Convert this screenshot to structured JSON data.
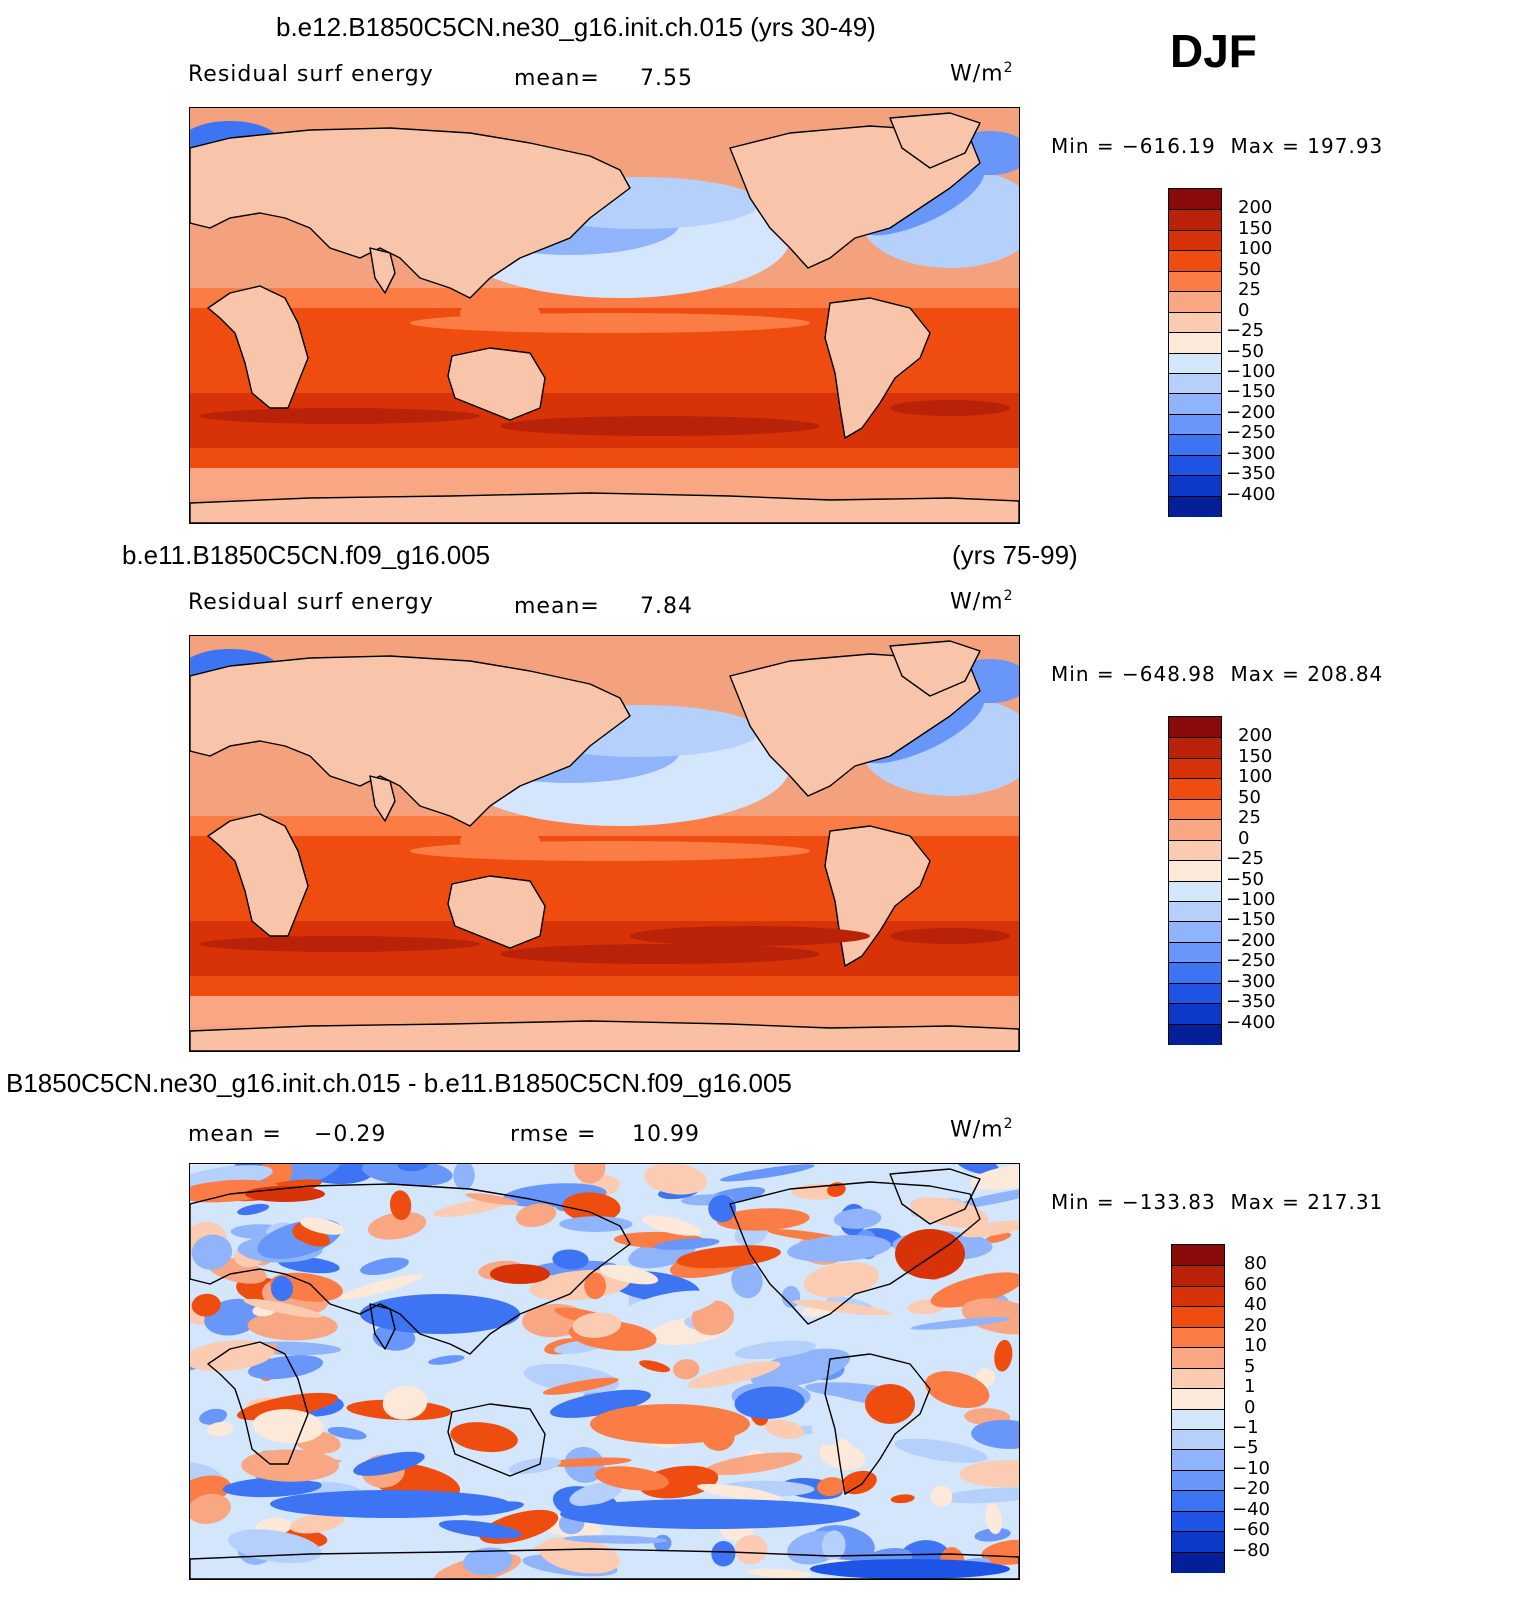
{
  "season": "DJF",
  "panels": [
    {
      "title_left": "b.e12.B1850C5CN.ne30_g16.init.ch.015 (yrs 30-49)",
      "title_right": "",
      "variable": "Residual surf energy",
      "stat1_label": "mean=",
      "stat1_value": "7.55",
      "stat2_label": "",
      "stat2_value": "",
      "units": "W/m",
      "units_exp": "2",
      "min_label": "Min",
      "min_value": "−616.19",
      "max_label": "Max",
      "max_value": "197.93",
      "colorbar": {
        "colors": [
          "#8a0a0a",
          "#b82209",
          "#d83208",
          "#ee4d0f",
          "#fb7d45",
          "#f9a783",
          "#fbcbb2",
          "#fde9d9",
          "#d4e6fb",
          "#b4d0fb",
          "#8fb4fb",
          "#6896f9",
          "#3d74f4",
          "#1f55e6",
          "#0c39c9",
          "#031f9a"
        ],
        "labels": [
          "200",
          "150",
          "100",
          "50",
          "25",
          "0",
          "−25",
          "−50",
          "−100",
          "−150",
          "−200",
          "−250",
          "−300",
          "−350",
          "−400"
        ]
      },
      "map_style": "absolute"
    },
    {
      "title_left": "b.e11.B1850C5CN.f09_g16.005",
      "title_right": "(yrs 75-99)",
      "variable": "Residual surf energy",
      "stat1_label": "mean=",
      "stat1_value": "7.84",
      "stat2_label": "",
      "stat2_value": "",
      "units": "W/m",
      "units_exp": "2",
      "min_label": "Min",
      "min_value": "−648.98",
      "max_label": "Max",
      "max_value": "208.84",
      "colorbar": {
        "colors": [
          "#8a0a0a",
          "#b82209",
          "#d83208",
          "#ee4d0f",
          "#fb7d45",
          "#f9a783",
          "#fbcbb2",
          "#fde9d9",
          "#d4e6fb",
          "#b4d0fb",
          "#8fb4fb",
          "#6896f9",
          "#3d74f4",
          "#1f55e6",
          "#0c39c9",
          "#031f9a"
        ],
        "labels": [
          "200",
          "150",
          "100",
          "50",
          "25",
          "0",
          "−25",
          "−50",
          "−100",
          "−150",
          "−200",
          "−250",
          "−300",
          "−350",
          "−400"
        ]
      },
      "map_style": "absolute"
    },
    {
      "title_left": "B1850C5CN.ne30_g16.init.ch.015 - b.e11.B1850C5CN.f09_g16.005",
      "title_right": "",
      "variable": "",
      "stat1_label": "mean =",
      "stat1_value": "−0.29",
      "stat2_label": "rmse =",
      "stat2_value": "10.99",
      "units": "W/m",
      "units_exp": "2",
      "min_label": "Min",
      "min_value": "−133.83",
      "max_label": "Max",
      "max_value": "217.31",
      "colorbar": {
        "colors": [
          "#8a0a0a",
          "#b82209",
          "#d83208",
          "#ee4d0f",
          "#fb7d45",
          "#f9a783",
          "#fbcbb2",
          "#fde9d9",
          "#d4e6fb",
          "#b4d0fb",
          "#8fb4fb",
          "#6896f9",
          "#3d74f4",
          "#1f55e6",
          "#0c39c9",
          "#031f9a"
        ],
        "labels": [
          "80",
          "60",
          "40",
          "20",
          "10",
          "5",
          "1",
          "0",
          "−1",
          "−5",
          "−10",
          "−20",
          "−40",
          "−60",
          "−80"
        ]
      },
      "map_style": "difference"
    }
  ]
}
